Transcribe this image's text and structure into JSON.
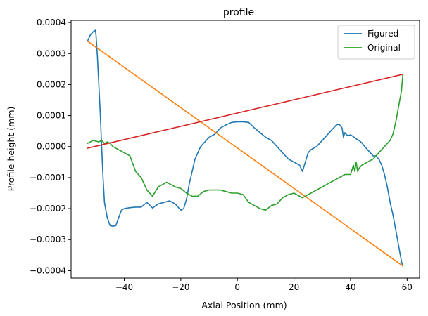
{
  "chart_data": {
    "type": "line",
    "title": "profile",
    "xlabel": "Axial Position (mm)",
    "ylabel": "Profile height (mm)",
    "xlim": [
      -58.8,
      64.4
    ],
    "ylim": [
      -0.000424,
      0.000407
    ],
    "xticks": [
      -40,
      -20,
      0,
      20,
      40,
      60
    ],
    "xtick_labels": [
      "−40",
      "−20",
      "0",
      "20",
      "40",
      "60"
    ],
    "yticks": [
      -0.0004,
      -0.0003,
      -0.0002,
      -0.0001,
      0.0,
      0.0001,
      0.0002,
      0.0003,
      0.0004
    ],
    "ytick_labels": [
      "−0.0004",
      "−0.0003",
      "−0.0002",
      "−0.0001",
      "0.0000",
      "0.0001",
      "0.0002",
      "0.0003",
      "0.0004"
    ],
    "grid": false,
    "legend_position": "top-right",
    "series": [
      {
        "name": "Figured",
        "color": "#1f77b4",
        "in_legend": true,
        "x": [
          -53,
          -52,
          -51,
          -50.2,
          -50,
          -49.5,
          -49,
          -48.5,
          -48,
          -47.5,
          -47,
          -46,
          -45,
          -44,
          -43,
          -42,
          -41,
          -40,
          -38,
          -36,
          -34,
          -32,
          -30,
          -28,
          -26,
          -24,
          -22,
          -20,
          -19,
          -18,
          -17,
          -16,
          -15,
          -14,
          -13,
          -12,
          -10,
          -8,
          -6,
          -4,
          -2,
          0,
          2,
          4,
          6,
          8,
          10,
          12,
          14,
          16,
          18,
          20,
          22,
          23,
          24,
          25,
          26,
          28,
          30,
          32,
          34,
          35,
          36,
          37,
          37.5,
          38,
          39,
          40,
          41,
          42,
          43,
          44,
          45,
          46,
          47,
          48,
          49,
          50,
          51,
          52,
          53,
          54,
          55,
          56,
          57,
          58,
          58.5
        ],
        "y": [
          0.00034,
          0.00036,
          0.00037,
          0.000375,
          0.00036,
          0.00029,
          0.0002,
          0.00011,
          0.0,
          -0.0001,
          -0.00018,
          -0.00023,
          -0.000255,
          -0.000257,
          -0.000255,
          -0.00023,
          -0.000205,
          -0.0002,
          -0.000197,
          -0.000195,
          -0.000195,
          -0.00018,
          -0.000198,
          -0.000185,
          -0.00018,
          -0.000175,
          -0.000185,
          -0.000205,
          -0.0002,
          -0.00017,
          -0.00012,
          -8e-05,
          -4e-05,
          -2e-05,
          0.0,
          1e-05,
          3e-05,
          4e-05,
          6e-05,
          7e-05,
          7.8e-05,
          8e-05,
          8e-05,
          7.8e-05,
          6e-05,
          4.5e-05,
          3e-05,
          2e-05,
          0.0,
          -2e-05,
          -4e-05,
          -5e-05,
          -6e-05,
          -8e-05,
          -5e-05,
          -2e-05,
          -1e-05,
          0.0,
          2e-05,
          4e-05,
          6e-05,
          7e-05,
          7.2e-05,
          6e-05,
          3e-05,
          4.5e-05,
          3.5e-05,
          3.8e-05,
          3.2e-05,
          2.5e-05,
          2e-05,
          1.2e-05,
          0.0,
          -1e-05,
          -2e-05,
          -3e-05,
          -3e-05,
          -4e-05,
          -6e-05,
          -9e-05,
          -0.00013,
          -0.00018,
          -0.00022,
          -0.00027,
          -0.00032,
          -0.00037,
          -0.000385
        ]
      },
      {
        "name": "",
        "color": "#ff7f0e",
        "in_legend": false,
        "x": [
          -53,
          58.5
        ],
        "y": [
          0.00034,
          -0.000385
        ]
      },
      {
        "name": "Original",
        "color": "#2ca02c",
        "in_legend": true,
        "x": [
          -53,
          -51,
          -49,
          -48,
          -47,
          -46,
          -45,
          -44,
          -42,
          -40,
          -38,
          -36,
          -34,
          -32,
          -30,
          -28,
          -26,
          -25,
          -24,
          -22,
          -20,
          -18,
          -16,
          -14,
          -12,
          -10,
          -8,
          -6,
          -4,
          -2,
          0,
          2,
          4,
          6,
          8,
          10,
          12,
          14,
          16,
          18,
          20,
          22,
          23,
          24,
          26,
          28,
          30,
          32,
          34,
          36,
          38,
          40,
          41,
          41.5,
          42,
          42.5,
          43,
          44,
          46,
          48,
          50,
          52,
          54,
          55,
          56,
          57,
          58,
          58.5
        ],
        "y": [
          1e-05,
          2e-05,
          1.5e-05,
          2e-05,
          1e-05,
          1.5e-05,
          1e-05,
          0.0,
          -1e-05,
          -2e-05,
          -3e-05,
          -8e-05,
          -0.0001,
          -0.00014,
          -0.00016,
          -0.00013,
          -0.00012,
          -0.000115,
          -0.00012,
          -0.00013,
          -0.000135,
          -0.00015,
          -0.00016,
          -0.00016,
          -0.000145,
          -0.00014,
          -0.00014,
          -0.00014,
          -0.000145,
          -0.00015,
          -0.00015,
          -0.000155,
          -0.00018,
          -0.00019,
          -0.0002,
          -0.000205,
          -0.00019,
          -0.000185,
          -0.000165,
          -0.000155,
          -0.00015,
          -0.00016,
          -0.000165,
          -0.00016,
          -0.00015,
          -0.00014,
          -0.00013,
          -0.00012,
          -0.00011,
          -0.0001,
          -9e-05,
          -9e-05,
          -6e-05,
          -8e-05,
          -5e-05,
          -8e-05,
          -7e-05,
          -6e-05,
          -5e-05,
          -4e-05,
          -2e-05,
          0.0,
          2e-05,
          4e-05,
          8e-05,
          0.00013,
          0.00018,
          0.000233
        ]
      },
      {
        "name": "",
        "color": "#d62728",
        "in_legend": false,
        "x": [
          -53,
          58.5
        ],
        "y": [
          -5e-06,
          0.000233
        ]
      }
    ]
  }
}
